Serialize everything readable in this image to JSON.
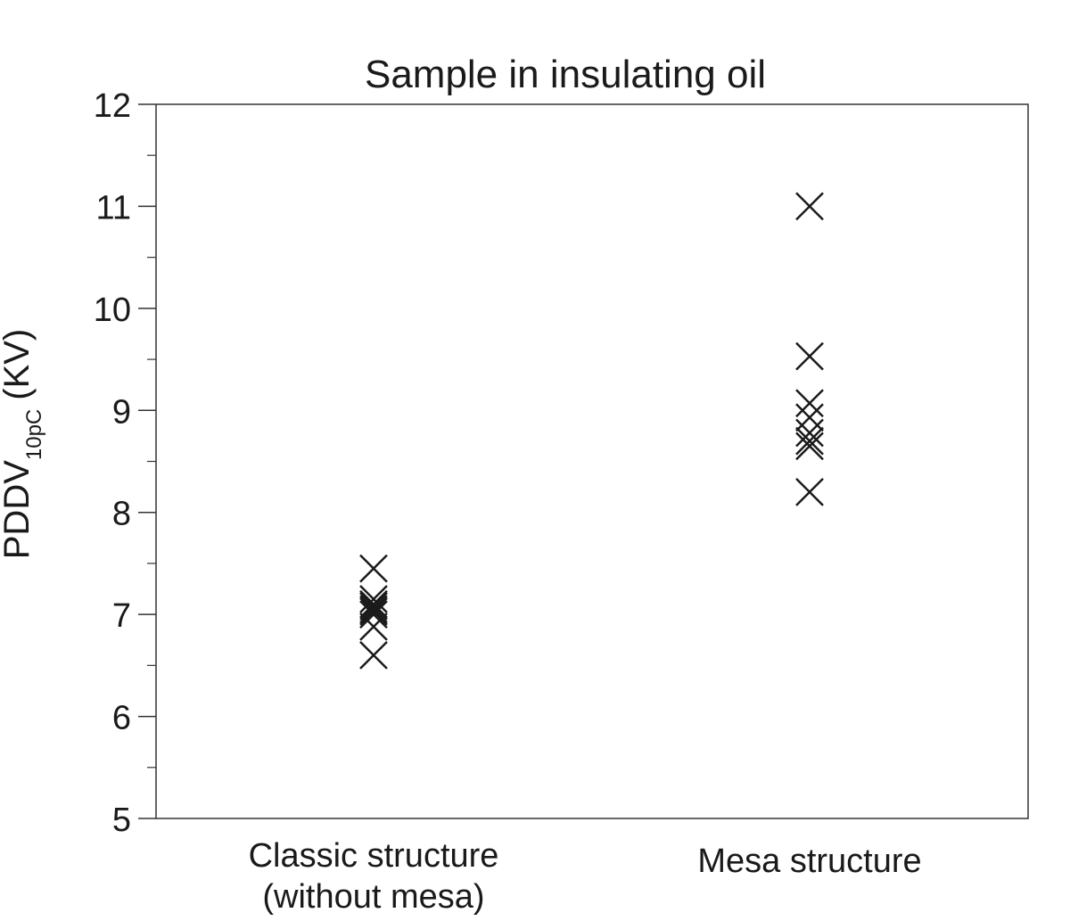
{
  "chart_data": {
    "type": "scatter",
    "title": "Sample in insulating oil",
    "ylabel": {
      "main": "PDDV",
      "subscript": "10pC",
      "unit": "(KV)"
    },
    "xlabel": "",
    "categories": [
      [
        "Classic structure",
        "(without mesa)"
      ],
      [
        "Mesa structure"
      ]
    ],
    "ylim": [
      5,
      12
    ],
    "yticks": [
      5,
      6,
      7,
      8,
      9,
      10,
      11,
      12
    ],
    "minor_ticks": true,
    "grid": false,
    "legend": "none",
    "marker": "x",
    "marker_color": "#1a1a1a",
    "series": [
      {
        "category": "Classic structure (without mesa)",
        "values": [
          7.45,
          7.15,
          7.1,
          7.08,
          7.05,
          7.03,
          7.0,
          6.88,
          6.6
        ]
      },
      {
        "category": "Mesa structure",
        "values": [
          11.0,
          9.53,
          9.07,
          8.93,
          8.78,
          8.7,
          8.65,
          8.2
        ]
      }
    ]
  }
}
